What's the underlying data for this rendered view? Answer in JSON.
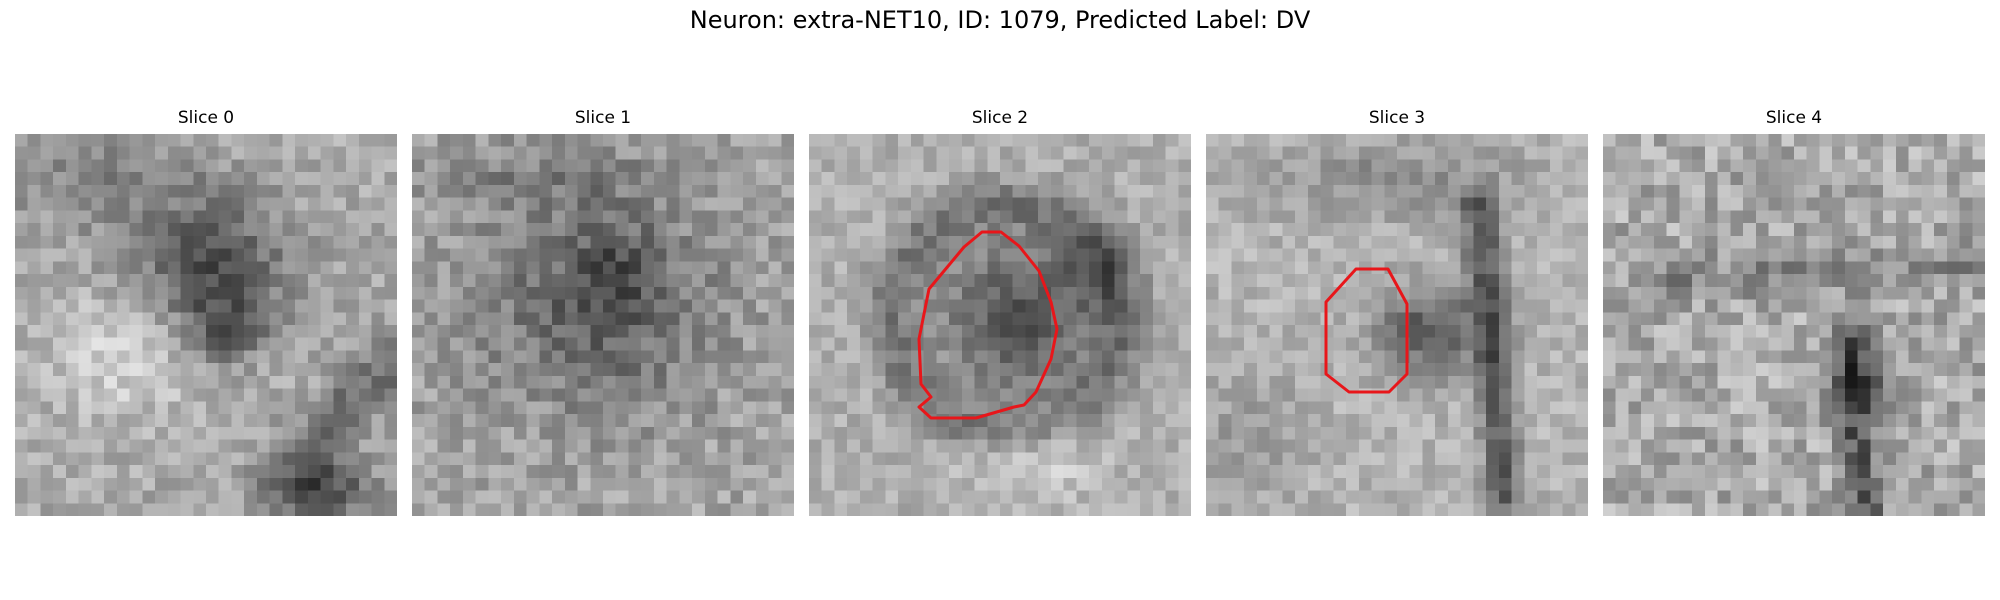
{
  "figure": {
    "title": "Neuron: extra-NET10, ID: 1079, Predicted Label: DV",
    "roi_color": "#e8161a",
    "colormap": "grayscale",
    "grid_size": [
      30,
      30
    ]
  },
  "panels": [
    {
      "title": "Slice 0",
      "has_roi": false
    },
    {
      "title": "Slice 1",
      "has_roi": false
    },
    {
      "title": "Slice 2",
      "has_roi": true
    },
    {
      "title": "Slice 3",
      "has_roi": true
    },
    {
      "title": "Slice 4",
      "has_roi": false
    }
  ]
}
